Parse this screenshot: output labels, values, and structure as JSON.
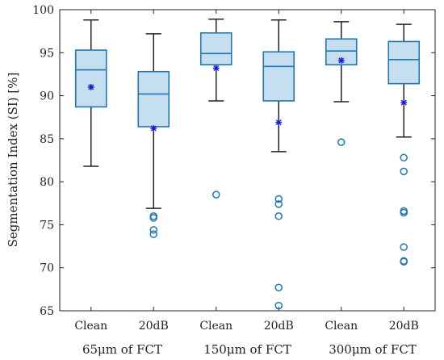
{
  "chart_data": {
    "type": "box",
    "title": "",
    "ylabel": "Segmentation Index (SI) [%]",
    "xlabel": "",
    "ylim": [
      65,
      100
    ],
    "yticks": [
      65,
      70,
      75,
      80,
      85,
      90,
      95,
      100
    ],
    "grid": false,
    "legend": "none",
    "categories": [
      "Clean",
      "20dB",
      "Clean",
      "20dB",
      "Clean",
      "20dB"
    ],
    "groups": [
      {
        "label": "65μm of FCT",
        "categories": [
          0,
          1
        ]
      },
      {
        "label": "150μm of FCT",
        "categories": [
          2,
          3
        ]
      },
      {
        "label": "300μm of FCT",
        "categories": [
          4,
          5
        ]
      }
    ],
    "boxes": [
      {
        "whisker_low": 81.8,
        "q1": 88.7,
        "median": 93.0,
        "q3": 95.3,
        "whisker_high": 98.8,
        "mean": 91.0,
        "outliers": []
      },
      {
        "whisker_low": 76.9,
        "q1": 86.4,
        "median": 90.2,
        "q3": 92.8,
        "whisker_high": 97.2,
        "mean": 86.2,
        "outliers": [
          76.0,
          75.8,
          74.4,
          73.9
        ]
      },
      {
        "whisker_low": 89.4,
        "q1": 93.6,
        "median": 94.9,
        "q3": 97.3,
        "whisker_high": 98.9,
        "mean": 93.2,
        "outliers": [
          78.5
        ]
      },
      {
        "whisker_low": 83.5,
        "q1": 89.4,
        "median": 93.4,
        "q3": 95.1,
        "whisker_high": 98.8,
        "mean": 86.9,
        "outliers": [
          78.0,
          77.4,
          76.0,
          67.7,
          65.6
        ]
      },
      {
        "whisker_low": 89.3,
        "q1": 93.6,
        "median": 95.2,
        "q3": 96.6,
        "whisker_high": 98.6,
        "mean": 94.1,
        "outliers": [
          84.6
        ]
      },
      {
        "whisker_low": 85.2,
        "q1": 91.4,
        "median": 94.2,
        "q3": 96.3,
        "whisker_high": 98.3,
        "mean": 89.2,
        "outliers": [
          82.8,
          81.2,
          76.6,
          76.4,
          72.4,
          70.8,
          70.7
        ]
      }
    ],
    "colors": {
      "box_fill": "#c5def0",
      "box_edge": "#1f78b4",
      "whisker": "#222222",
      "mean": "#1a1ad6",
      "outlier": "#1f78b4"
    }
  }
}
